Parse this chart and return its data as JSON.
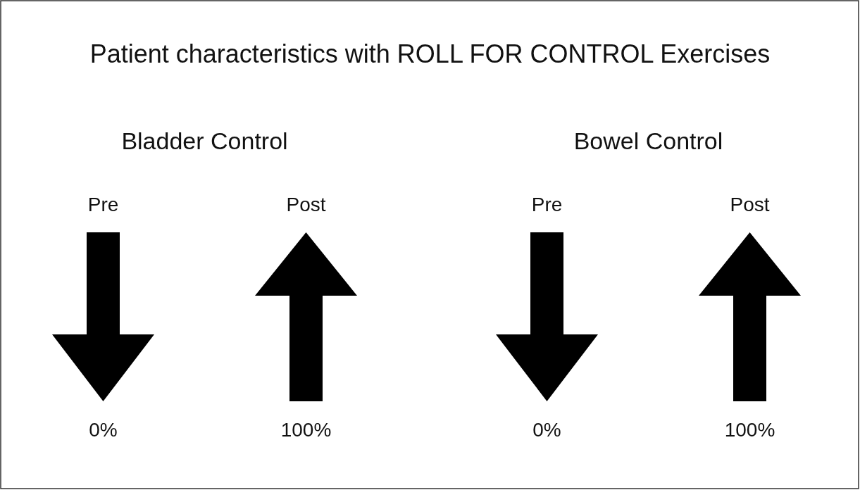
{
  "chart_data": {
    "type": "other",
    "title": "Patient characteristics with ROLL FOR CONTROL Exercises",
    "categories": [
      "Pre",
      "Post"
    ],
    "series": [
      {
        "name": "Bladder Control",
        "color": "#000000",
        "values": [
          0,
          100
        ],
        "value_labels": [
          "0%",
          "100%"
        ]
      },
      {
        "name": "Bowel Control",
        "color": "#000000",
        "values": [
          0,
          100
        ],
        "value_labels": [
          "0%",
          "100%"
        ]
      }
    ]
  }
}
